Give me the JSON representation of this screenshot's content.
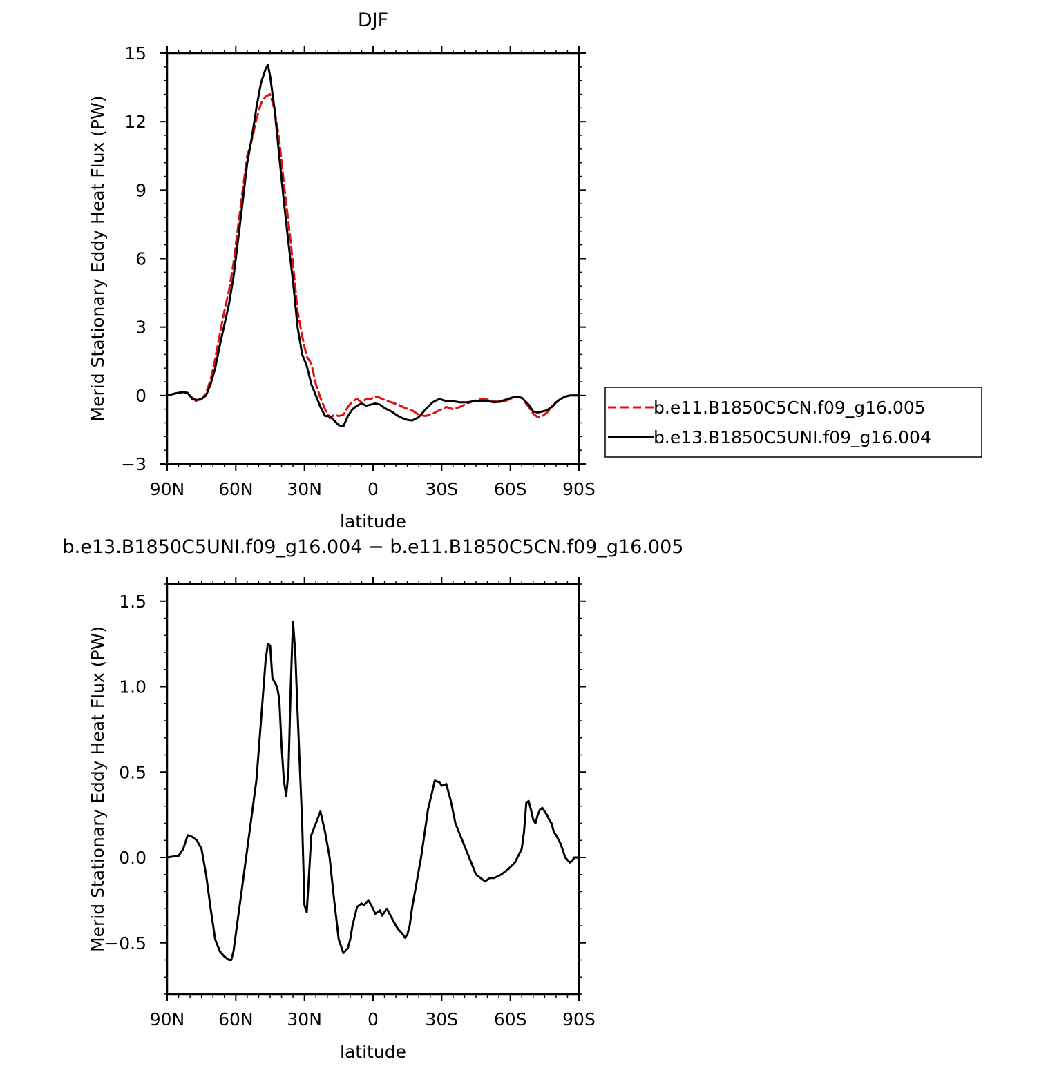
{
  "chart_data": [
    {
      "type": "line",
      "title": "DJF",
      "xlabel": "latitude",
      "ylabel": "Merid Stationary Eddy Heat Flux (PW)",
      "xlim": [
        90,
        -90
      ],
      "ylim": [
        -3,
        15
      ],
      "x_ticks": [
        {
          "value": 90,
          "label": "90N"
        },
        {
          "value": 60,
          "label": "60N"
        },
        {
          "value": 30,
          "label": "30N"
        },
        {
          "value": 0,
          "label": "0"
        },
        {
          "value": -30,
          "label": "30S"
        },
        {
          "value": -60,
          "label": "60S"
        },
        {
          "value": -90,
          "label": "90S"
        }
      ],
      "y_ticks": [
        {
          "value": -3,
          "label": "−3"
        },
        {
          "value": 0,
          "label": "0"
        },
        {
          "value": 3,
          "label": "3"
        },
        {
          "value": 6,
          "label": "6"
        },
        {
          "value": 9,
          "label": "9"
        },
        {
          "value": 12,
          "label": "12"
        },
        {
          "value": 15,
          "label": "15"
        }
      ],
      "legend_position": "right",
      "series": [
        {
          "name": "b.e11.B1850C5CN.f09_g16.005",
          "color": "#e01010",
          "dash": "dashed",
          "x": [
            90,
            86,
            83,
            81,
            79,
            77,
            75,
            73,
            71,
            69,
            67,
            65,
            63,
            61,
            59,
            57,
            55,
            53,
            51,
            49,
            47,
            45,
            43,
            41,
            39,
            37,
            35,
            33,
            31,
            29,
            27,
            25,
            23,
            21,
            19,
            17,
            15,
            13,
            11,
            9,
            7,
            5,
            3,
            1,
            -1,
            -3,
            -5,
            -8,
            -11,
            -14,
            -17,
            -20,
            -23,
            -26,
            -29,
            -32,
            -35,
            -38,
            -41,
            -44,
            -47,
            -50,
            -53,
            -56,
            -59,
            -62,
            -65,
            -68,
            -70,
            -72,
            -74,
            -76,
            -78,
            -80,
            -82,
            -84,
            -86,
            -88,
            -90
          ],
          "y": [
            0.0,
            0.1,
            0.15,
            0.12,
            -0.1,
            -0.28,
            -0.15,
            0.1,
            0.7,
            1.6,
            2.7,
            3.7,
            4.6,
            5.8,
            7.4,
            9.0,
            10.5,
            11.2,
            12.1,
            12.8,
            13.1,
            13.2,
            12.5,
            11.2,
            9.3,
            7.6,
            5.8,
            3.7,
            2.6,
            1.7,
            1.4,
            0.5,
            -0.1,
            -0.6,
            -1.0,
            -0.85,
            -0.9,
            -0.85,
            -0.5,
            -0.25,
            -0.15,
            -0.3,
            -0.15,
            -0.15,
            -0.05,
            -0.1,
            -0.2,
            -0.3,
            -0.4,
            -0.55,
            -0.65,
            -0.85,
            -0.9,
            -0.8,
            -0.65,
            -0.5,
            -0.6,
            -0.5,
            -0.35,
            -0.25,
            -0.15,
            -0.18,
            -0.25,
            -0.3,
            -0.2,
            -0.05,
            -0.1,
            -0.5,
            -0.8,
            -0.95,
            -0.9,
            -0.75,
            -0.55,
            -0.3,
            -0.15,
            -0.05,
            0.0,
            0.0,
            0.0
          ]
        },
        {
          "name": "b.e13.B1850C5UNI.f09_g16.004",
          "color": "#000000",
          "dash": "solid",
          "x": [
            90,
            86,
            83,
            81,
            79,
            77,
            75,
            73,
            71,
            69,
            67,
            65,
            63,
            61,
            59,
            57,
            55,
            53,
            51,
            49,
            47,
            46,
            45,
            43,
            41,
            39,
            37,
            35,
            33,
            31,
            29,
            27,
            25,
            23,
            21,
            19,
            17,
            15,
            13,
            11,
            9,
            7,
            5,
            3,
            1,
            -1,
            -3,
            -5,
            -8,
            -11,
            -14,
            -17,
            -20,
            -23,
            -26,
            -29,
            -32,
            -35,
            -38,
            -41,
            -44,
            -47,
            -50,
            -53,
            -56,
            -59,
            -62,
            -65,
            -68,
            -70,
            -72,
            -74,
            -76,
            -78,
            -80,
            -82,
            -84,
            -86,
            -88,
            -90
          ],
          "y": [
            0.0,
            0.1,
            0.15,
            0.1,
            -0.15,
            -0.2,
            -0.15,
            0.0,
            0.5,
            1.2,
            2.2,
            3.1,
            4.0,
            5.2,
            6.8,
            8.5,
            10.2,
            11.3,
            12.6,
            13.7,
            14.3,
            14.5,
            14.0,
            12.5,
            10.5,
            8.5,
            6.7,
            5.0,
            3.0,
            1.8,
            1.3,
            0.5,
            0.0,
            -0.5,
            -0.9,
            -0.9,
            -1.1,
            -1.3,
            -1.35,
            -0.9,
            -0.6,
            -0.45,
            -0.35,
            -0.45,
            -0.4,
            -0.35,
            -0.4,
            -0.55,
            -0.7,
            -0.9,
            -1.05,
            -1.1,
            -0.95,
            -0.6,
            -0.3,
            -0.15,
            -0.25,
            -0.25,
            -0.3,
            -0.3,
            -0.25,
            -0.25,
            -0.25,
            -0.3,
            -0.25,
            -0.15,
            -0.05,
            -0.1,
            -0.4,
            -0.7,
            -0.75,
            -0.7,
            -0.65,
            -0.5,
            -0.3,
            -0.15,
            -0.05,
            0.0,
            0.0,
            0.0
          ]
        }
      ]
    },
    {
      "type": "line",
      "title": "b.e13.B1850C5UNI.f09_g16.004 − b.e11.B1850C5CN.f09_g16.005",
      "xlabel": "latitude",
      "ylabel": "Merid Stationary Eddy Heat Flux (PW)",
      "xlim": [
        90,
        -90
      ],
      "ylim": [
        -0.8,
        1.6
      ],
      "x_ticks": [
        {
          "value": 90,
          "label": "90N"
        },
        {
          "value": 60,
          "label": "60N"
        },
        {
          "value": 30,
          "label": "30N"
        },
        {
          "value": 0,
          "label": "0"
        },
        {
          "value": -30,
          "label": "30S"
        },
        {
          "value": -60,
          "label": "60S"
        },
        {
          "value": -90,
          "label": "90S"
        }
      ],
      "y_ticks": [
        {
          "value": -0.5,
          "label": "−0.5"
        },
        {
          "value": 0.0,
          "label": "0.0"
        },
        {
          "value": 0.5,
          "label": "0.5"
        },
        {
          "value": 1.0,
          "label": "1.0"
        },
        {
          "value": 1.5,
          "label": "1.5"
        }
      ],
      "series": [
        {
          "color": "#000000",
          "dash": "solid",
          "x": [
            90,
            85,
            83,
            81,
            79,
            77,
            75,
            73,
            71,
            69,
            67,
            65,
            63,
            62,
            61,
            59,
            57,
            55,
            53,
            51,
            49,
            47,
            46,
            45,
            44,
            42,
            41,
            40,
            39,
            38,
            37,
            36,
            35,
            34,
            33,
            31,
            30,
            29,
            28,
            27,
            25,
            23,
            21,
            19,
            17,
            15,
            13,
            11,
            10,
            9,
            7,
            5,
            4,
            2,
            0,
            -1,
            -3,
            -4,
            -5,
            -6,
            -8,
            -10,
            -11,
            -13,
            -14,
            -15,
            -16,
            -17,
            -19,
            -21,
            -24,
            -27,
            -29,
            -30,
            -32,
            -34,
            -36,
            -39,
            -42,
            -45,
            -48,
            -49,
            -51,
            -53,
            -56,
            -59,
            -62,
            -65,
            -66,
            -67,
            -68,
            -69,
            -70,
            -71,
            -72,
            -73,
            -74,
            -75,
            -76,
            -77,
            -78,
            -79,
            -80,
            -82,
            -84,
            -86,
            -87,
            -88,
            -90
          ],
          "y": [
            0.0,
            0.01,
            0.05,
            0.13,
            0.12,
            0.1,
            0.05,
            -0.1,
            -0.3,
            -0.48,
            -0.55,
            -0.58,
            -0.6,
            -0.6,
            -0.55,
            -0.35,
            -0.15,
            0.05,
            0.25,
            0.45,
            0.8,
            1.15,
            1.25,
            1.24,
            1.05,
            1.0,
            0.93,
            0.65,
            0.45,
            0.36,
            0.5,
            1.0,
            1.38,
            1.2,
            0.85,
            0.2,
            -0.28,
            -0.32,
            -0.1,
            0.13,
            0.2,
            0.27,
            0.15,
            0.0,
            -0.25,
            -0.48,
            -0.56,
            -0.53,
            -0.48,
            -0.4,
            -0.29,
            -0.27,
            -0.28,
            -0.25,
            -0.3,
            -0.33,
            -0.31,
            -0.34,
            -0.32,
            -0.3,
            -0.35,
            -0.4,
            -0.42,
            -0.45,
            -0.47,
            -0.45,
            -0.4,
            -0.3,
            -0.15,
            0.0,
            0.28,
            0.45,
            0.44,
            0.42,
            0.43,
            0.33,
            0.2,
            0.1,
            0.0,
            -0.1,
            -0.13,
            -0.14,
            -0.12,
            -0.12,
            -0.1,
            -0.07,
            -0.03,
            0.05,
            0.15,
            0.32,
            0.33,
            0.28,
            0.22,
            0.2,
            0.25,
            0.28,
            0.29,
            0.27,
            0.25,
            0.22,
            0.2,
            0.15,
            0.13,
            0.08,
            0.0,
            -0.03,
            -0.02,
            0.0,
            0.0
          ]
        }
      ]
    }
  ]
}
